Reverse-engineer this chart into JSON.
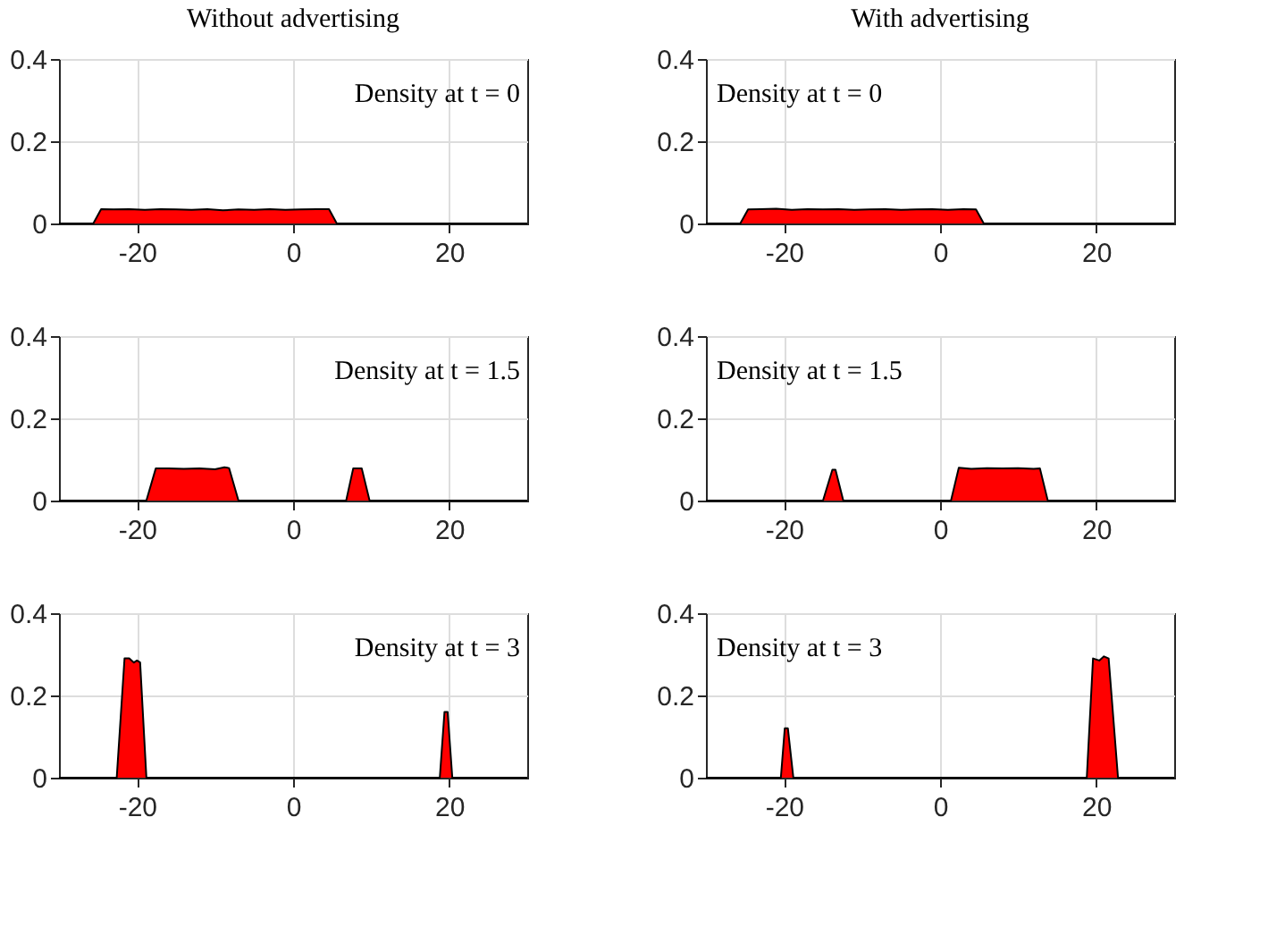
{
  "chart_data": [
    {
      "type": "area",
      "title": "Without advertising",
      "annotations": [
        "Density at t = 0"
      ],
      "xlim": [
        -30,
        30
      ],
      "xticks": [
        -20,
        0,
        20
      ],
      "ylim": [
        0,
        0.4
      ],
      "yticks": [
        0,
        0.2,
        0.4
      ],
      "grid": true,
      "x": [
        -30,
        -25.6,
        -24.6,
        -23,
        -21,
        -19,
        -17,
        -15,
        -13,
        -11,
        -9,
        -7,
        -5,
        -3,
        -1,
        1,
        3,
        4.6,
        5.6,
        30
      ],
      "series": [
        {
          "color": "#ff0000",
          "values": [
            0,
            0,
            0.035,
            0.034,
            0.035,
            0.033,
            0.035,
            0.034,
            0.033,
            0.035,
            0.032,
            0.034,
            0.033,
            0.035,
            0.033,
            0.034,
            0.035,
            0.035,
            0,
            0
          ]
        }
      ]
    },
    {
      "type": "area",
      "title": "With advertising",
      "annotations": [
        "Density at t = 0"
      ],
      "xlim": [
        -30,
        30
      ],
      "xticks": [
        -20,
        0,
        20
      ],
      "ylim": [
        0,
        0.4
      ],
      "yticks": [
        0,
        0.2,
        0.4
      ],
      "grid": true,
      "x": [
        -30,
        -25.6,
        -24.6,
        -23,
        -21,
        -19,
        -17,
        -15,
        -13,
        -11,
        -9,
        -7,
        -5,
        -3,
        -1,
        1,
        3,
        4.6,
        5.6,
        30
      ],
      "series": [
        {
          "color": "#ff0000",
          "values": [
            0,
            0,
            0.034,
            0.035,
            0.036,
            0.033,
            0.035,
            0.034,
            0.035,
            0.033,
            0.034,
            0.035,
            0.033,
            0.034,
            0.035,
            0.033,
            0.035,
            0.034,
            0,
            0
          ]
        }
      ]
    },
    {
      "type": "area",
      "annotations": [
        "Density at t = 1.5"
      ],
      "xlim": [
        -30,
        30
      ],
      "xticks": [
        -20,
        0,
        20
      ],
      "ylim": [
        0,
        0.4
      ],
      "yticks": [
        0,
        0.2,
        0.4
      ],
      "grid": true,
      "x": [
        -30,
        -18.8,
        -17.6,
        -16,
        -14,
        -12,
        -10,
        -8.8,
        -8.2,
        -7,
        6.8,
        7.7,
        8.8,
        9.8,
        30
      ],
      "series": [
        {
          "color": "#ff0000",
          "values": [
            0,
            0,
            0.078,
            0.078,
            0.077,
            0.078,
            0.076,
            0.081,
            0.079,
            0,
            0,
            0.078,
            0.078,
            0,
            0
          ]
        }
      ]
    },
    {
      "type": "area",
      "annotations": [
        "Density at t = 1.5"
      ],
      "xlim": [
        -30,
        30
      ],
      "xticks": [
        -20,
        0,
        20
      ],
      "ylim": [
        0,
        0.4
      ],
      "yticks": [
        0,
        0.2,
        0.4
      ],
      "grid": true,
      "x": [
        -30,
        -15,
        -13.8,
        -13.4,
        -12.4,
        1.4,
        2.4,
        4,
        6,
        8,
        10,
        12,
        12.8,
        13.8,
        30
      ],
      "series": [
        {
          "color": "#ff0000",
          "values": [
            0,
            0,
            0.075,
            0.075,
            0,
            0,
            0.08,
            0.077,
            0.079,
            0.078,
            0.079,
            0.077,
            0.078,
            0,
            0
          ]
        }
      ]
    },
    {
      "type": "area",
      "annotations": [
        "Density at t = 3"
      ],
      "xlim": [
        -30,
        30
      ],
      "xticks": [
        -20,
        0,
        20
      ],
      "ylim": [
        0,
        0.4
      ],
      "yticks": [
        0,
        0.2,
        0.4
      ],
      "grid": true,
      "x": [
        -30,
        -22.6,
        -21.6,
        -21,
        -20.4,
        -20,
        -19.6,
        -18.8,
        18.8,
        19.4,
        19.8,
        20.4,
        30
      ],
      "series": [
        {
          "color": "#ff0000",
          "values": [
            0,
            0,
            0.29,
            0.29,
            0.28,
            0.285,
            0.28,
            0,
            0,
            0.16,
            0.16,
            0,
            0
          ]
        }
      ]
    },
    {
      "type": "area",
      "annotations": [
        "Density at t = 3"
      ],
      "xlim": [
        -30,
        30
      ],
      "xticks": [
        -20,
        0,
        20
      ],
      "ylim": [
        0,
        0.4
      ],
      "yticks": [
        0,
        0.2,
        0.4
      ],
      "grid": true,
      "x": [
        -30,
        -20.4,
        -19.9,
        -19.5,
        -18.8,
        18.8,
        19.6,
        20.4,
        21,
        21.6,
        22.8,
        30
      ],
      "series": [
        {
          "color": "#ff0000",
          "values": [
            0,
            0,
            0.12,
            0.12,
            0,
            0,
            0.29,
            0.285,
            0.295,
            0.29,
            0,
            0
          ]
        }
      ]
    }
  ]
}
